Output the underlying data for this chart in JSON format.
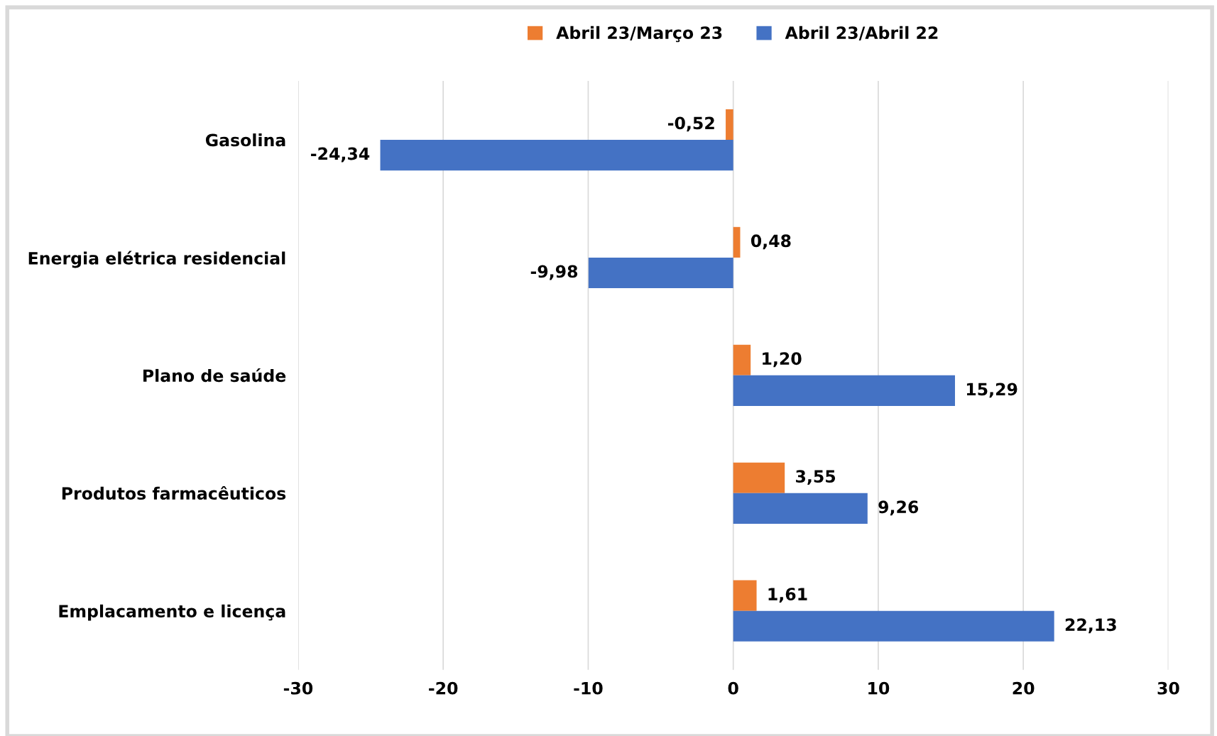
{
  "chart_data": {
    "type": "bar",
    "orientation": "horizontal",
    "categories": [
      "Gasolina",
      "Energia elétrica residencial",
      "Plano de saúde",
      "Produtos farmacêuticos",
      "Emplacamento e licença"
    ],
    "series": [
      {
        "name": "Abril 23/Março 23",
        "color": "#ed7d31",
        "values": [
          -0.52,
          0.48,
          1.2,
          3.55,
          1.61
        ],
        "value_labels": [
          "-0,52",
          "0,48",
          "1,20",
          "3,55",
          "1,61"
        ]
      },
      {
        "name": "Abril 23/Abril 22",
        "color": "#4472c4",
        "values": [
          -24.34,
          -9.98,
          15.29,
          9.26,
          22.13
        ],
        "value_labels": [
          "-24,34",
          "-9,98",
          "15,29",
          "9,26",
          "22,13"
        ]
      }
    ],
    "xlim": [
      -30,
      30
    ],
    "xticks": [
      -30,
      -20,
      -10,
      0,
      10,
      20,
      30
    ],
    "grid": "x",
    "legend": "top"
  }
}
